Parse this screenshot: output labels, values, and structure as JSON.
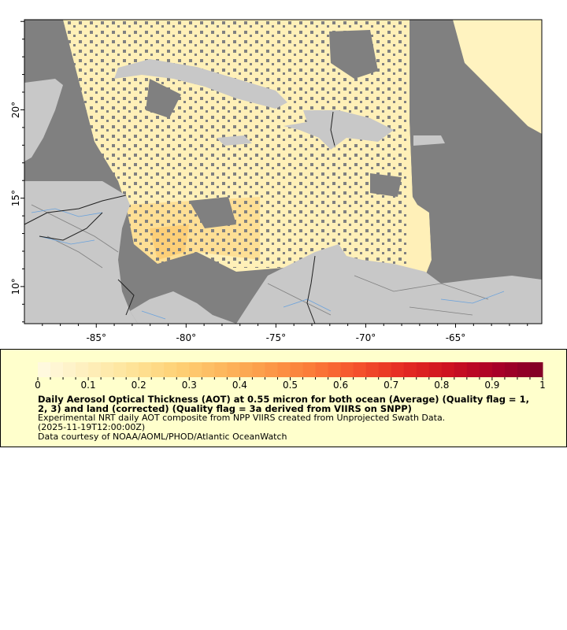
{
  "map": {
    "longitude_ticks": [
      {
        "value": -85,
        "label": "-85°"
      },
      {
        "value": -80,
        "label": "-80°"
      },
      {
        "value": -75,
        "label": "-75°"
      },
      {
        "value": -70,
        "label": "-70°"
      },
      {
        "value": -65,
        "label": "-65°"
      }
    ],
    "latitude_ticks": [
      {
        "value": 20,
        "label": "20°"
      },
      {
        "value": 15,
        "label": "15°"
      },
      {
        "value": 10,
        "label": "10°"
      }
    ],
    "lon_range": [
      -89,
      -60.2
    ],
    "lat_range": [
      7.9,
      25.1
    ],
    "colors": {
      "no_data": "#808080",
      "land": "#c8c8c8",
      "rivers": "#6aa2dc",
      "borders": "#808080",
      "national_borders": "#202020"
    }
  },
  "legend": {
    "colorbar_range": [
      0,
      1
    ],
    "colorbar_steps": 40,
    "colormap": [
      "#fffbe3",
      "#fef0bf",
      "#fee49a",
      "#fed277",
      "#fdb85e",
      "#fc9a48",
      "#fb7a38",
      "#f4502c",
      "#e42a22",
      "#cc1020",
      "#a80028",
      "#800026"
    ],
    "tick_labels": [
      "0",
      "0.1",
      "0.2",
      "0.3",
      "0.4",
      "0.5",
      "0.6",
      "0.7",
      "0.8",
      "0.9",
      "1"
    ],
    "title_line1": "Daily Aerosol Optical Thickness (AOT) at 0.55 micron for both ocean (Average) (Quality flag = 1,",
    "title_line2": "2, 3) and land (corrected) (Quality flag = 3a derived from VIIRS on SNPP)",
    "description": "Experimental NRT daily AOT composite from NPP VIIRS created from Unprojected Swath Data.",
    "time": "(2025-11-19T12:00:00Z)",
    "credit": "Data courtesy of NOAA/AOML/PHOD/Atlantic OceanWatch"
  }
}
